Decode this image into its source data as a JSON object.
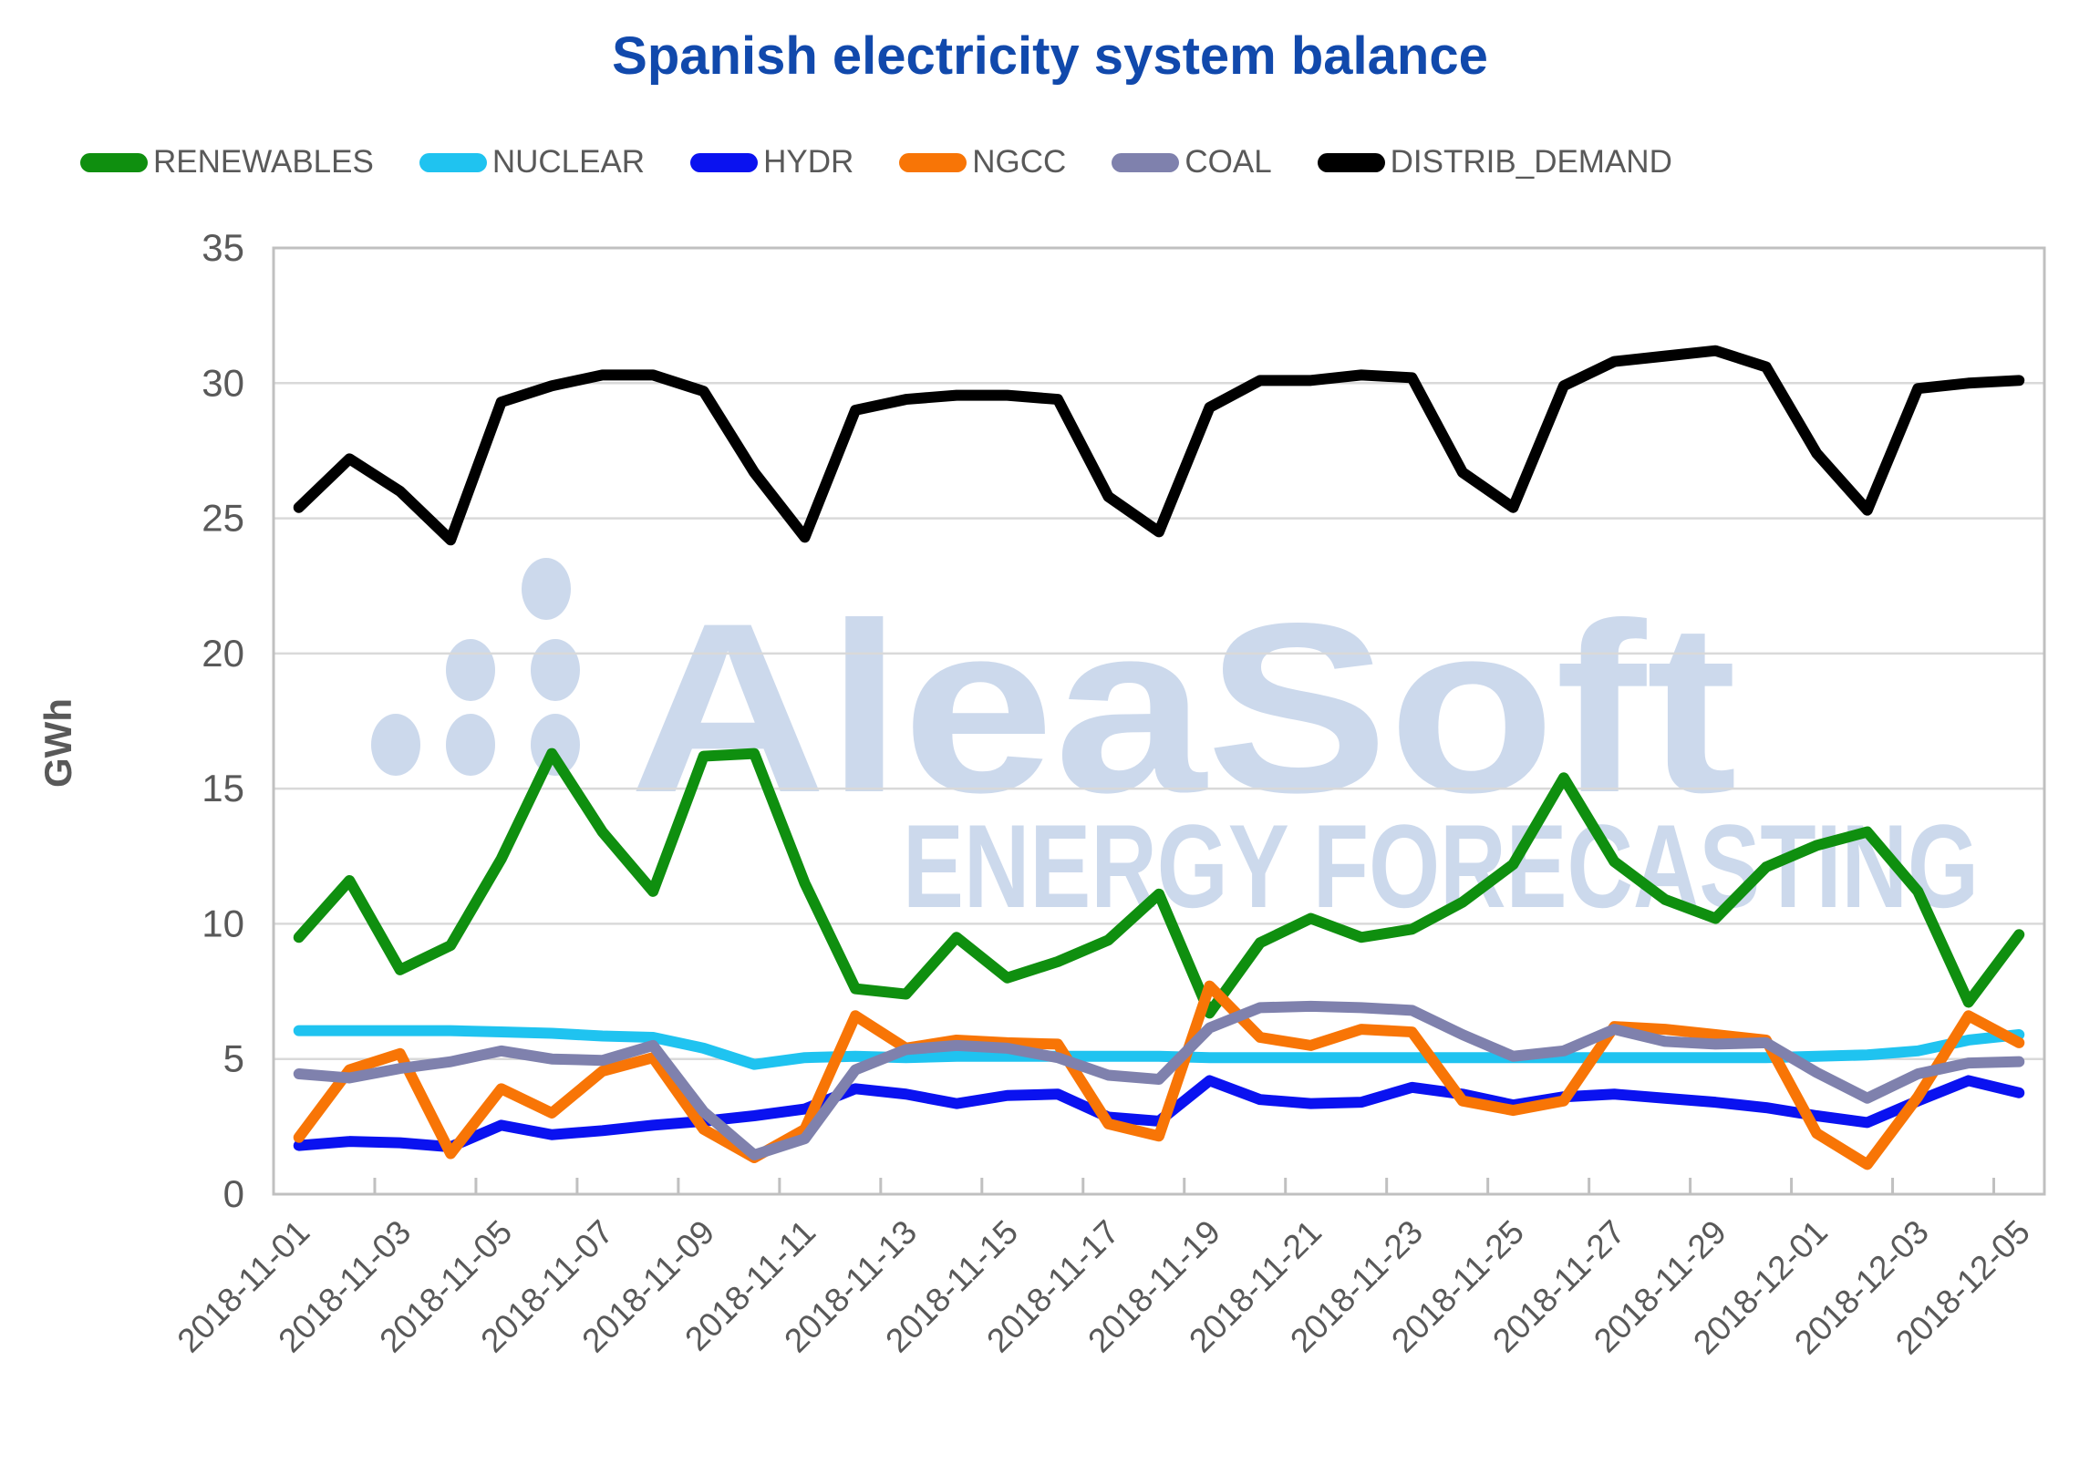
{
  "chart_data": {
    "type": "line",
    "title": "Spanish electricity system balance",
    "title_color": "#1149ac",
    "ylabel": "GWh",
    "xlabel": "",
    "ylim": [
      0,
      35
    ],
    "ytick_step": 5,
    "grid": true,
    "legend_position": "top",
    "axis_text_color": "#595959",
    "grid_color": "#d9d9d9",
    "frame_color": "#c0c0c0",
    "xtick_label_every": 2,
    "categories": [
      "2018-11-01",
      "2018-11-02",
      "2018-11-03",
      "2018-11-04",
      "2018-11-05",
      "2018-11-06",
      "2018-11-07",
      "2018-11-08",
      "2018-11-09",
      "2018-11-10",
      "2018-11-11",
      "2018-11-12",
      "2018-11-13",
      "2018-11-14",
      "2018-11-15",
      "2018-11-16",
      "2018-11-17",
      "2018-11-18",
      "2018-11-19",
      "2018-11-20",
      "2018-11-21",
      "2018-11-22",
      "2018-11-23",
      "2018-11-24",
      "2018-11-25",
      "2018-11-26",
      "2018-11-27",
      "2018-11-28",
      "2018-11-29",
      "2018-11-30",
      "2018-12-01",
      "2018-12-02",
      "2018-12-03",
      "2018-12-04",
      "2018-12-05"
    ],
    "series": [
      {
        "name": "RENEWABLES",
        "color": "#0f8f0f",
        "values": [
          9.5,
          11.6,
          8.3,
          9.2,
          12.4,
          16.3,
          13.4,
          11.2,
          16.2,
          16.3,
          11.5,
          7.6,
          7.4,
          9.5,
          8.0,
          8.6,
          9.4,
          11.1,
          6.7,
          9.3,
          10.2,
          9.5,
          9.8,
          10.8,
          12.2,
          15.4,
          12.3,
          10.9,
          10.2,
          12.1,
          12.9,
          13.4,
          11.2,
          7.1,
          9.6
        ]
      },
      {
        "name": "NUCLEAR",
        "color": "#1fc3f0",
        "values": [
          6.05,
          6.05,
          6.05,
          6.05,
          6.0,
          5.95,
          5.85,
          5.8,
          5.4,
          4.8,
          5.05,
          5.1,
          5.05,
          5.1,
          5.1,
          5.1,
          5.1,
          5.1,
          5.05,
          5.05,
          5.05,
          5.05,
          5.05,
          5.05,
          5.05,
          5.05,
          5.05,
          5.05,
          5.05,
          5.05,
          5.1,
          5.15,
          5.3,
          5.7,
          5.9
        ]
      },
      {
        "name": "HYDR",
        "color": "#0a12f0",
        "values": [
          1.8,
          1.95,
          1.9,
          1.75,
          2.55,
          2.2,
          2.35,
          2.55,
          2.7,
          2.9,
          3.15,
          3.9,
          3.7,
          3.35,
          3.65,
          3.7,
          2.85,
          2.7,
          4.2,
          3.5,
          3.35,
          3.4,
          3.95,
          3.7,
          3.3,
          3.6,
          3.7,
          3.55,
          3.4,
          3.2,
          2.9,
          2.65,
          3.45,
          4.2,
          3.75
        ]
      },
      {
        "name": "NGCC",
        "color": "#f87506",
        "values": [
          2.1,
          4.6,
          5.2,
          1.5,
          3.9,
          3.0,
          4.55,
          5.05,
          2.4,
          1.35,
          2.4,
          6.6,
          5.4,
          5.7,
          5.6,
          5.55,
          2.6,
          2.15,
          7.7,
          5.8,
          5.5,
          6.1,
          6.0,
          3.45,
          3.1,
          3.45,
          6.2,
          6.1,
          5.9,
          5.7,
          2.25,
          1.1,
          3.6,
          6.6,
          5.6
        ]
      },
      {
        "name": "COAL",
        "color": "#7f81ad",
        "values": [
          4.45,
          4.3,
          4.65,
          4.9,
          5.3,
          5.0,
          4.95,
          5.5,
          3.05,
          1.45,
          2.05,
          4.6,
          5.35,
          5.5,
          5.4,
          5.05,
          4.4,
          4.25,
          6.15,
          6.9,
          6.95,
          6.9,
          6.8,
          5.9,
          5.1,
          5.3,
          6.1,
          5.65,
          5.55,
          5.6,
          4.5,
          3.55,
          4.45,
          4.85,
          4.9
        ]
      },
      {
        "name": "DISTRIB_DEMAND",
        "color": "#000000",
        "values": [
          25.4,
          27.2,
          26.0,
          24.2,
          29.3,
          29.9,
          30.3,
          30.3,
          29.7,
          26.7,
          24.3,
          29.0,
          29.4,
          29.55,
          29.55,
          29.4,
          25.8,
          24.5,
          29.1,
          30.1,
          30.1,
          30.3,
          30.2,
          26.7,
          25.4,
          29.9,
          30.8,
          31.0,
          31.2,
          30.6,
          27.4,
          25.3,
          29.8,
          30.0,
          30.1
        ]
      }
    ],
    "watermark": {
      "logo_text": "AleaSoft",
      "subtext": "ENERGY FORECASTING",
      "color": "#ccd9ec"
    }
  }
}
